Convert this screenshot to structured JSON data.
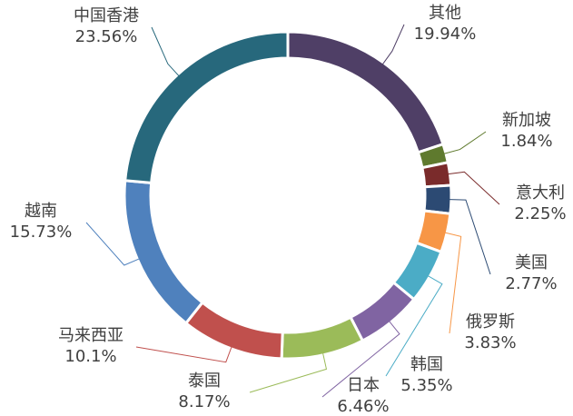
{
  "chart_data": {
    "type": "pie",
    "donut": true,
    "categories": [
      "其他",
      "新加坡",
      "意大利",
      "美国",
      "俄罗斯",
      "韩国",
      "日本",
      "泰国",
      "马来西亚",
      "越南",
      "中国香港"
    ],
    "values": [
      19.94,
      1.84,
      2.25,
      2.77,
      3.83,
      5.35,
      6.46,
      8.17,
      10.1,
      15.73,
      23.56
    ],
    "value_labels": [
      "19.94%",
      "1.84%",
      "2.25%",
      "2.77%",
      "3.83%",
      "5.35%",
      "6.46%",
      "8.17%",
      "10.1%",
      "15.73%",
      "23.56%"
    ],
    "colors": [
      "#4f3f66",
      "#5f7a2e",
      "#7a2b2b",
      "#2c4a73",
      "#f79646",
      "#4bacc6",
      "#8064a2",
      "#9bbb59",
      "#c0504d",
      "#4f81bd",
      "#27687c"
    ]
  }
}
